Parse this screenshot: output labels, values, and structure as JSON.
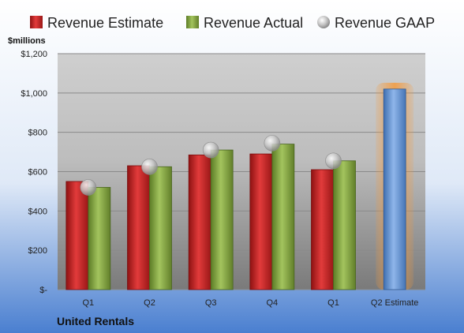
{
  "chart_data": {
    "type": "bar",
    "categories": [
      "Q1",
      "Q2",
      "Q3",
      "Q4",
      "Q1",
      "Q2 Estimate"
    ],
    "series": [
      {
        "name": "Revenue Estimate",
        "values": [
          550,
          630,
          685,
          690,
          610,
          1020
        ]
      },
      {
        "name": "Revenue Actual",
        "values": [
          520,
          625,
          710,
          740,
          655,
          null
        ]
      },
      {
        "name": "Revenue GAAP",
        "values": [
          520,
          625,
          710,
          745,
          655,
          null
        ]
      }
    ],
    "ylabel": "$millions",
    "ylim": [
      0,
      1200
    ],
    "yticks": [
      0,
      200,
      400,
      600,
      800,
      1000,
      1200
    ],
    "ytick_labels": [
      "$-",
      "$200",
      "$400",
      "$600",
      "$800",
      "$1,000",
      "$1,200"
    ],
    "grid": true,
    "legend": "top",
    "highlighted_category": "Q2 Estimate",
    "colors": {
      "estimate": "#d42a2a",
      "actual": "#8db048",
      "gaap": "#b8b8b8",
      "forecast": "#6c9bd8",
      "highlight_glow": "#f59a3c"
    }
  },
  "footer": {
    "company": "United Rentals"
  }
}
